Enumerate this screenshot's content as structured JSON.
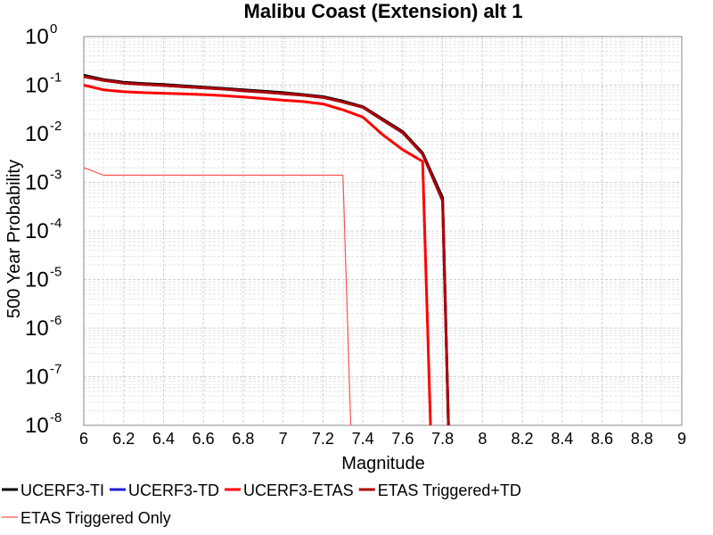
{
  "chart_data": {
    "type": "line",
    "title": "Malibu Coast (Extension) alt 1",
    "xlabel": "Magnitude",
    "ylabel": "500 Year Probability",
    "xlim": [
      6,
      9
    ],
    "ylim": [
      1e-08,
      1
    ],
    "yscale": "log",
    "grid": true,
    "legend_position": "bottom",
    "x_ticks": [
      "6",
      "6.2",
      "6.4",
      "6.6",
      "6.8",
      "7",
      "7.2",
      "7.4",
      "7.6",
      "7.8",
      "8",
      "8.2",
      "8.4",
      "8.6",
      "8.8",
      "9"
    ],
    "y_ticks": [
      {
        "base": "10",
        "exp": "0",
        "value": 1
      },
      {
        "base": "10",
        "exp": "-1",
        "value": 0.1
      },
      {
        "base": "10",
        "exp": "-2",
        "value": 0.01
      },
      {
        "base": "10",
        "exp": "-3",
        "value": 0.001
      },
      {
        "base": "10",
        "exp": "-4",
        "value": 0.0001
      },
      {
        "base": "10",
        "exp": "-5",
        "value": 1e-05
      },
      {
        "base": "10",
        "exp": "-6",
        "value": 1e-06
      },
      {
        "base": "10",
        "exp": "-7",
        "value": 1e-07
      },
      {
        "base": "10",
        "exp": "-8",
        "value": 1e-08
      }
    ],
    "series": [
      {
        "name": "UCERF3-TI",
        "color": "#000000",
        "width": 3,
        "points": [
          [
            6.0,
            0.16
          ],
          [
            6.1,
            0.13
          ],
          [
            6.2,
            0.115
          ],
          [
            6.3,
            0.108
          ],
          [
            6.4,
            0.103
          ],
          [
            6.5,
            0.097
          ],
          [
            6.6,
            0.091
          ],
          [
            6.7,
            0.086
          ],
          [
            6.8,
            0.08
          ],
          [
            6.9,
            0.075
          ],
          [
            7.0,
            0.07
          ],
          [
            7.1,
            0.064
          ],
          [
            7.2,
            0.058
          ],
          [
            7.3,
            0.047
          ],
          [
            7.4,
            0.036
          ],
          [
            7.5,
            0.02
          ],
          [
            7.6,
            0.011
          ],
          [
            7.7,
            0.004
          ],
          [
            7.8,
            0.00048
          ],
          [
            7.83,
            8e-09
          ]
        ]
      },
      {
        "name": "UCERF3-TD",
        "color": "#1f1fd6",
        "width": 3,
        "points": [
          [
            6.0,
            0.15
          ],
          [
            6.1,
            0.125
          ],
          [
            6.2,
            0.11
          ],
          [
            6.3,
            0.104
          ],
          [
            6.4,
            0.099
          ],
          [
            6.5,
            0.093
          ],
          [
            6.6,
            0.088
          ],
          [
            6.7,
            0.083
          ],
          [
            6.8,
            0.077
          ],
          [
            6.9,
            0.072
          ],
          [
            7.0,
            0.067
          ],
          [
            7.1,
            0.062
          ],
          [
            7.2,
            0.056
          ],
          [
            7.3,
            0.045
          ],
          [
            7.4,
            0.035
          ],
          [
            7.5,
            0.019
          ],
          [
            7.6,
            0.0105
          ],
          [
            7.7,
            0.0038
          ],
          [
            7.8,
            0.00042
          ],
          [
            7.83,
            8e-09
          ]
        ]
      },
      {
        "name": "UCERF3-ETAS",
        "color": "#ff0000",
        "width": 3,
        "points": [
          [
            6.0,
            0.1
          ],
          [
            6.1,
            0.08
          ],
          [
            6.2,
            0.073
          ],
          [
            6.3,
            0.07
          ],
          [
            6.4,
            0.068
          ],
          [
            6.5,
            0.066
          ],
          [
            6.6,
            0.064
          ],
          [
            6.7,
            0.061
          ],
          [
            6.8,
            0.057
          ],
          [
            6.9,
            0.053
          ],
          [
            7.0,
            0.049
          ],
          [
            7.1,
            0.046
          ],
          [
            7.2,
            0.041
          ],
          [
            7.3,
            0.031
          ],
          [
            7.4,
            0.022
          ],
          [
            7.5,
            0.0095
          ],
          [
            7.6,
            0.0047
          ],
          [
            7.7,
            0.0027
          ],
          [
            7.74,
            8e-09
          ]
        ]
      },
      {
        "name": "ETAS Triggered+TD",
        "color": "#b00000",
        "width": 3,
        "points": [
          [
            6.0,
            0.15
          ],
          [
            6.1,
            0.125
          ],
          [
            6.2,
            0.11
          ],
          [
            6.3,
            0.104
          ],
          [
            6.4,
            0.099
          ],
          [
            6.5,
            0.093
          ],
          [
            6.6,
            0.088
          ],
          [
            6.7,
            0.083
          ],
          [
            6.8,
            0.077
          ],
          [
            6.9,
            0.072
          ],
          [
            7.0,
            0.067
          ],
          [
            7.1,
            0.062
          ],
          [
            7.2,
            0.056
          ],
          [
            7.3,
            0.045
          ],
          [
            7.4,
            0.035
          ],
          [
            7.5,
            0.019
          ],
          [
            7.6,
            0.0105
          ],
          [
            7.7,
            0.0038
          ],
          [
            7.8,
            0.00042
          ],
          [
            7.83,
            8e-09
          ]
        ]
      },
      {
        "name": "ETAS Triggered Only",
        "color": "#ff5050",
        "width": 1.2,
        "points": [
          [
            6.0,
            0.002
          ],
          [
            6.1,
            0.0014
          ],
          [
            6.2,
            0.0014
          ],
          [
            6.3,
            0.0014
          ],
          [
            6.4,
            0.0014
          ],
          [
            6.5,
            0.0014
          ],
          [
            6.6,
            0.0014
          ],
          [
            6.7,
            0.0014
          ],
          [
            6.8,
            0.0014
          ],
          [
            6.9,
            0.0014
          ],
          [
            7.0,
            0.0014
          ],
          [
            7.1,
            0.0014
          ],
          [
            7.2,
            0.0014
          ],
          [
            7.3,
            0.0014
          ],
          [
            7.34,
            8e-09
          ]
        ]
      }
    ]
  }
}
